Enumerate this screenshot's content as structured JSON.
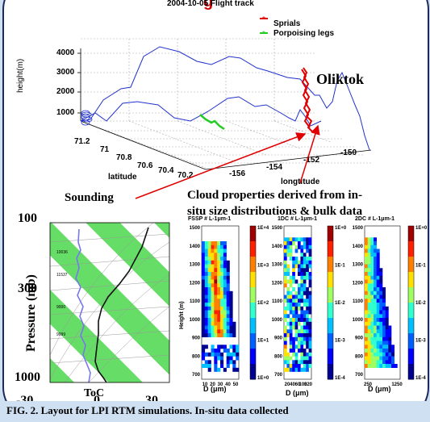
{
  "figure": {
    "title_fragment": "g",
    "plot_title": "2004-10-05 Flight track",
    "legend": {
      "spirals": "Sprials",
      "porpoising": "Porpoising legs"
    },
    "flight3d": {
      "zlabel": "height(m)",
      "zticks": [
        "4000",
        "3000",
        "2000",
        "1000"
      ],
      "xlabel": "latitude",
      "xticks": [
        "71.2",
        "71",
        "70.8",
        "70.6",
        "70.4",
        "70.2"
      ],
      "ylabel": "longtitude",
      "yticks": [
        "-156",
        "-154",
        "-152",
        "-150"
      ],
      "place": "Oliktok"
    },
    "annotations": {
      "sounding": "Sounding",
      "cloud_line1": "Cloud properties derived from in-",
      "cloud_line2": "situ size distributions & bulk data"
    },
    "skewt": {
      "ylabel": "Pressure (mb)",
      "xlabel": "ToC",
      "yticks": [
        "100",
        "300",
        "1000"
      ],
      "xticks": [
        "-30",
        "0",
        "30"
      ],
      "inner_labels": [
        "10036",
        "11537",
        "9000",
        "9999"
      ]
    },
    "probes": [
      {
        "title": "FSSP # L-1μm-1",
        "xlabel": "D (μm)",
        "xticks": [
          "10",
          "20",
          "30",
          "40",
          "50"
        ],
        "cbar": [
          "1E+4",
          "1E+3",
          "1E+2",
          "1E+1",
          "1E+0"
        ]
      },
      {
        "title": "1DC # L-1μm-1",
        "xlabel": "D (μm)",
        "xticks": [
          "20",
          "40",
          "60",
          "100",
          "320"
        ],
        "cbar": [
          "1E+0",
          "1E-1",
          "1E-2",
          "1E-3",
          "1E-4"
        ]
      },
      {
        "title": "2DC # L-1μm-1",
        "xlabel": "D (μm)",
        "xticks": [
          "250",
          "1250"
        ],
        "cbar": [
          "1E+0",
          "1E-1",
          "1E-2",
          "1E-3",
          "1E-4"
        ]
      }
    ],
    "probe_ylabel": "Height (m)",
    "probe_yticks": [
      "1500",
      "1400",
      "1300",
      "1200",
      "1100",
      "1000",
      "900",
      "800",
      "700"
    ],
    "caption": "FIG. 2. Layout for LPI RTM simulations. In-situ data collected"
  },
  "colors": {
    "frame_bg": "#cfe0f2",
    "title_red": "#cc0000",
    "track": "#2233cc",
    "spiral": "#e00000",
    "leg": "#22cc22",
    "stripe": "#66dd66"
  }
}
